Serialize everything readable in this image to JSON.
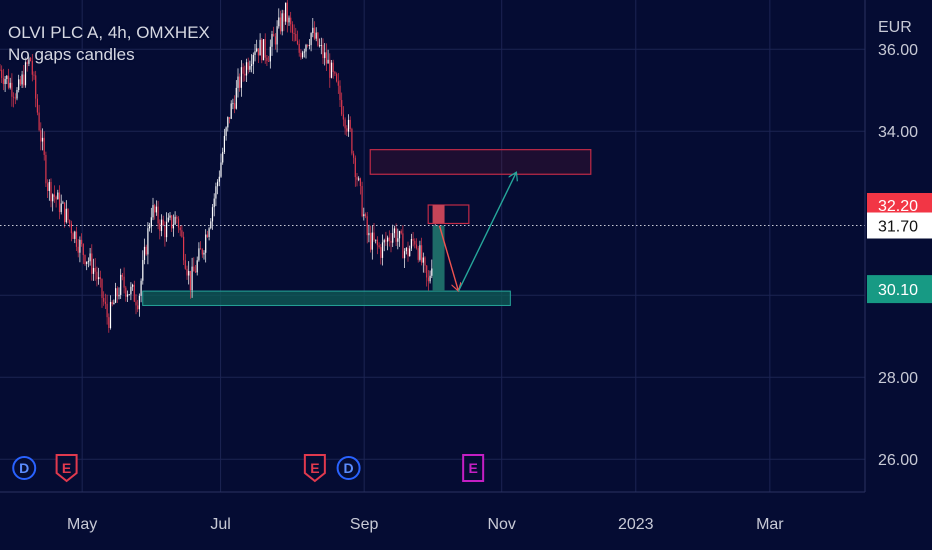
{
  "legend": {
    "symbol_line": "OLVI PLC A, 4h, OMXHEX",
    "indicator": "No gaps candles"
  },
  "colors": {
    "background": "#050c33",
    "grid": "#1c2453",
    "up": "#ffffff",
    "down": "#e0394e",
    "bid_label": "#f23645",
    "target_label": "#179a84",
    "support_zone": "#0f5e57",
    "resistance_zone": "#8b1a2e",
    "arrow_up": "#26a69a",
    "arrow_down": "#ef5350",
    "event_dividend": "#2962ff",
    "event_earnings": "#e0394e",
    "event_future": "#c41fc4"
  },
  "chart_data": {
    "type": "candlestick",
    "instrument": "OLVI PLC A",
    "interval": "4h",
    "exchange": "OMXHEX",
    "currency": "EUR",
    "ylim": [
      25.2,
      37.2
    ],
    "y_ticks": [
      "26.00",
      "28.00",
      "30.00",
      "34.00",
      "36.00"
    ],
    "x_ticks": [
      {
        "label": "May",
        "t": 0.095
      },
      {
        "label": "Jul",
        "t": 0.255
      },
      {
        "label": "Sep",
        "t": 0.421
      },
      {
        "label": "Nov",
        "t": 0.58
      },
      {
        "label": "2023",
        "t": 0.735
      },
      {
        "label": "Mar",
        "t": 0.89
      }
    ],
    "price_path": [
      [
        0.0,
        35.5
      ],
      [
        0.02,
        34.9
      ],
      [
        0.035,
        35.8
      ],
      [
        0.045,
        34.2
      ],
      [
        0.055,
        32.7
      ],
      [
        0.075,
        32.0
      ],
      [
        0.095,
        31.1
      ],
      [
        0.11,
        30.6
      ],
      [
        0.125,
        29.4
      ],
      [
        0.14,
        30.3
      ],
      [
        0.16,
        29.9
      ],
      [
        0.175,
        32.1
      ],
      [
        0.19,
        31.6
      ],
      [
        0.205,
        31.9
      ],
      [
        0.22,
        30.3
      ],
      [
        0.235,
        31.2
      ],
      [
        0.25,
        32.6
      ],
      [
        0.265,
        34.4
      ],
      [
        0.28,
        35.4
      ],
      [
        0.295,
        36.1
      ],
      [
        0.31,
        35.9
      ],
      [
        0.33,
        36.9
      ],
      [
        0.345,
        35.9
      ],
      [
        0.36,
        36.4
      ],
      [
        0.38,
        35.6
      ],
      [
        0.39,
        35.0
      ],
      [
        0.405,
        33.9
      ],
      [
        0.415,
        32.6
      ],
      [
        0.425,
        31.4
      ],
      [
        0.44,
        31.1
      ],
      [
        0.455,
        31.6
      ],
      [
        0.47,
        31.0
      ],
      [
        0.48,
        31.4
      ],
      [
        0.495,
        30.2
      ],
      [
        0.505,
        31.8
      ]
    ],
    "last_candle": {
      "open": 31.7,
      "high": 31.8,
      "low": 30.1,
      "close": 30.1
    },
    "price_labels": {
      "bid": "32.20",
      "last": "31.70",
      "target": "30.10"
    },
    "zones": {
      "support": {
        "y0": 29.75,
        "y1": 30.1,
        "x0": 0.165,
        "x1": 0.59
      },
      "resistance": {
        "y0": 32.95,
        "y1": 33.55,
        "x0": 0.428,
        "x1": 0.683
      },
      "small_box": {
        "y0": 31.75,
        "y1": 32.2,
        "x0": 0.495,
        "x1": 0.542
      }
    },
    "arrows": [
      {
        "from": [
          0.508,
          31.7
        ],
        "to": [
          0.53,
          30.1
        ],
        "color": "down"
      },
      {
        "from": [
          0.53,
          30.1
        ],
        "to": [
          0.597,
          33.0
        ],
        "color": "up"
      }
    ],
    "events": [
      {
        "letter": "D",
        "t": 0.028,
        "kind": "dividend"
      },
      {
        "letter": "E",
        "t": 0.077,
        "kind": "earnings"
      },
      {
        "letter": "E",
        "t": 0.364,
        "kind": "earnings"
      },
      {
        "letter": "D",
        "t": 0.403,
        "kind": "dividend"
      },
      {
        "letter": "E",
        "t": 0.547,
        "kind": "future"
      }
    ]
  }
}
